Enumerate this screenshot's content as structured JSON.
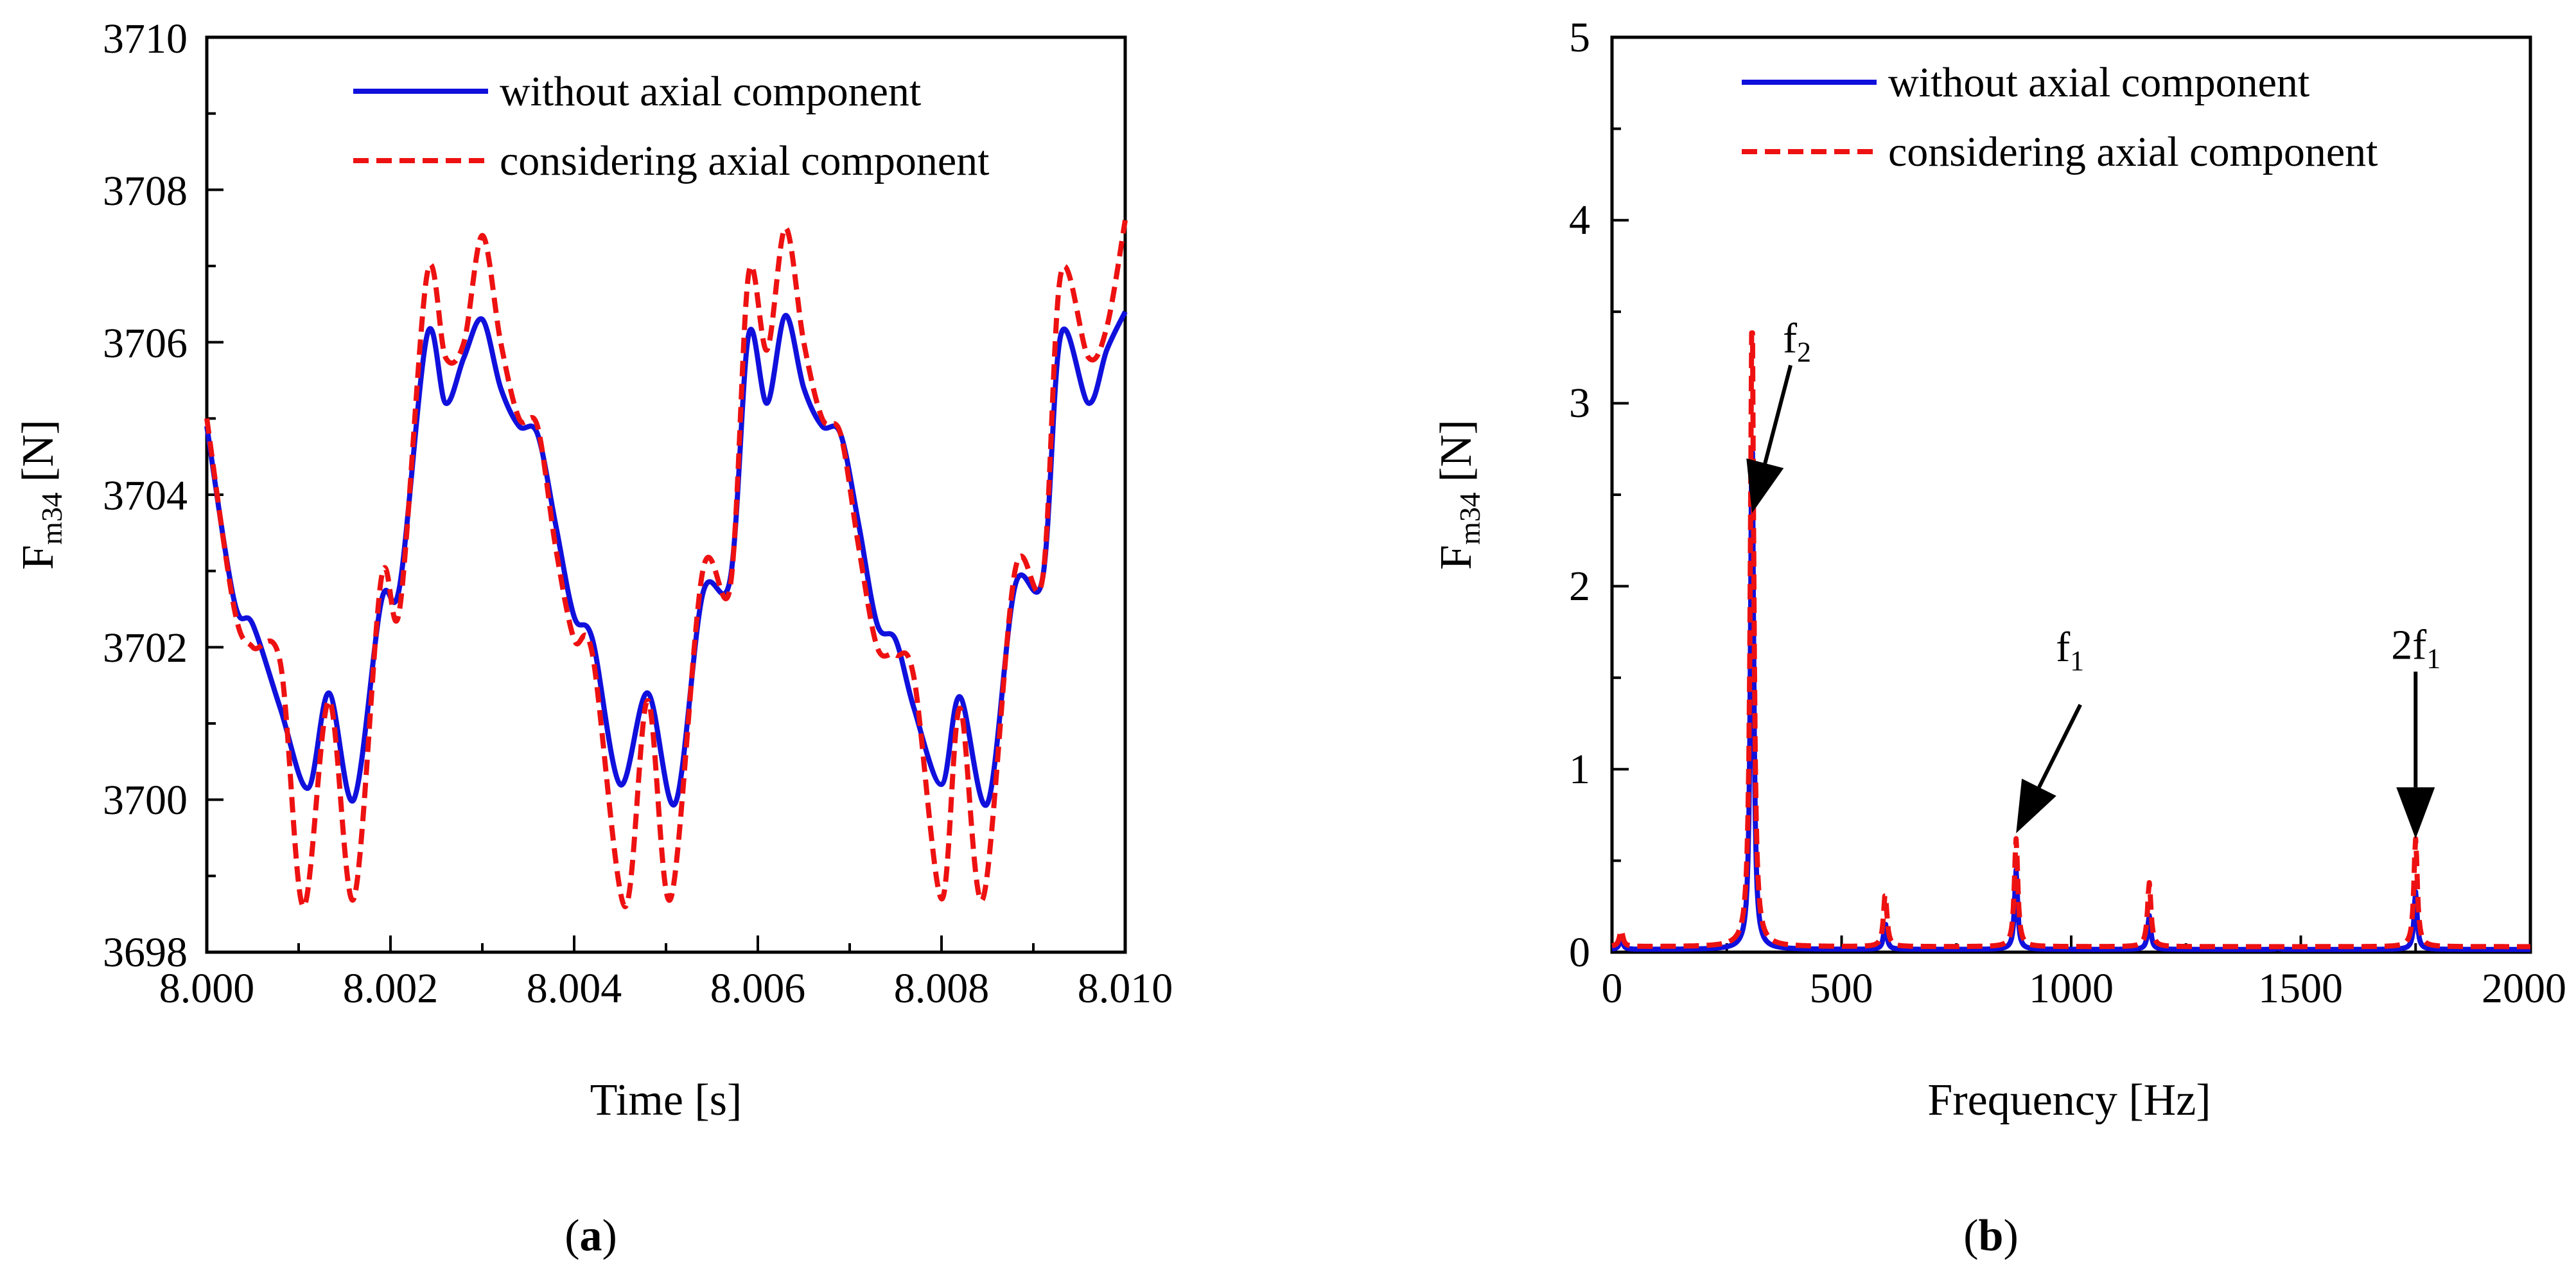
{
  "chart_data": [
    {
      "id": "a",
      "type": "line",
      "panel_label": "(a)",
      "panel_label_letter": "a",
      "xlabel": "Time [s]",
      "ylabel_main": "F",
      "ylabel_sub": "m34",
      "ylabel_unit": "[N]",
      "xlim": [
        8.0,
        8.01
      ],
      "ylim": [
        3698,
        3710
      ],
      "xticks": [
        "8.000",
        "8.002",
        "8.004",
        "8.006",
        "8.008",
        "8.010"
      ],
      "yticks": [
        "3698",
        "3700",
        "3702",
        "3704",
        "3706",
        "3708",
        "3710"
      ],
      "legend_position": "top-right",
      "legend": [
        "without axial component",
        "considering axial component"
      ],
      "series": [
        {
          "name": "without axial component",
          "color": "#1010dd",
          "style": "solid",
          "x": [
            8.0,
            8.0003,
            8.0005,
            8.0008,
            8.0011,
            8.00133,
            8.0016,
            8.0019,
            8.0021,
            8.0024,
            8.0026,
            8.0028,
            8.003,
            8.0032,
            8.0034,
            8.0036,
            8.0038,
            8.004,
            8.0042,
            8.0045,
            8.0048,
            8.0051,
            8.0054,
            8.0057,
            8.0059,
            8.0061,
            8.0063,
            8.0065,
            8.0067,
            8.0069,
            8.0071,
            8.0073,
            8.0075,
            8.0077,
            8.008,
            8.0082,
            8.0085,
            8.0088,
            8.0091,
            8.0093,
            8.0096,
            8.0098,
            8.01
          ],
          "y": [
            3704.9,
            3702.6,
            3702.3,
            3701.2,
            3700.15,
            3701.4,
            3700.0,
            3702.6,
            3702.8,
            3706.1,
            3705.2,
            3705.8,
            3706.3,
            3705.4,
            3704.9,
            3704.8,
            3703.6,
            3702.4,
            3702.1,
            3700.2,
            3701.4,
            3699.95,
            3702.7,
            3702.9,
            3706.1,
            3705.2,
            3706.35,
            3705.4,
            3704.9,
            3704.8,
            3703.6,
            3702.3,
            3702.1,
            3701.2,
            3700.2,
            3701.35,
            3699.95,
            3702.8,
            3702.9,
            3706.1,
            3705.2,
            3705.9,
            3706.4
          ]
        },
        {
          "name": "considering axial component",
          "color": "#ee1111",
          "style": "dashed",
          "x": [
            8.0,
            8.0003,
            8.0005,
            8.0008,
            8.00105,
            8.00133,
            8.0016,
            8.0019,
            8.0021,
            8.0024,
            8.0026,
            8.0028,
            8.003,
            8.0032,
            8.0034,
            8.0036,
            8.0038,
            8.004,
            8.0042,
            8.00455,
            8.0048,
            8.00505,
            8.0054,
            8.0057,
            8.0059,
            8.0061,
            8.0063,
            8.0065,
            8.0067,
            8.0069,
            8.0071,
            8.0073,
            8.0075,
            8.0077,
            8.008,
            8.0082,
            8.00845,
            8.0088,
            8.0091,
            8.0093,
            8.0096,
            8.0098,
            8.01
          ],
          "y": [
            3705.0,
            3702.5,
            3702.0,
            3701.8,
            3698.6,
            3701.3,
            3698.7,
            3702.9,
            3702.5,
            3706.9,
            3705.8,
            3706.0,
            3707.4,
            3706.0,
            3705.0,
            3704.9,
            3703.3,
            3702.1,
            3701.9,
            3698.6,
            3701.3,
            3698.7,
            3703.0,
            3702.8,
            3706.9,
            3705.9,
            3707.5,
            3706.0,
            3705.0,
            3704.8,
            3703.3,
            3702.0,
            3701.9,
            3701.6,
            3698.7,
            3701.2,
            3698.7,
            3703.0,
            3702.9,
            3706.9,
            3705.8,
            3706.2,
            3707.6
          ]
        }
      ]
    },
    {
      "id": "b",
      "type": "line",
      "panel_label": "(b)",
      "panel_label_letter": "b",
      "xlabel": "Frequency [Hz]",
      "ylabel_main": "F",
      "ylabel_sub": "m34",
      "ylabel_unit": "[N]",
      "xlim": [
        0,
        2000
      ],
      "ylim": [
        0,
        5
      ],
      "xticks": [
        "0",
        "500",
        "1000",
        "1500",
        "2000"
      ],
      "yticks": [
        "0",
        "1",
        "2",
        "3",
        "4",
        "5"
      ],
      "legend_position": "top-right",
      "legend": [
        "without axial component",
        "considering axial component"
      ],
      "annotations": [
        {
          "text_main": "f",
          "text_sub": "2",
          "x": 305,
          "y": 2.4
        },
        {
          "text_main": "f",
          "text_sub": "1",
          "x": 880,
          "y": 0.65
        },
        {
          "text_main": "2f",
          "text_sub": "1",
          "x": 1750,
          "y": 0.62
        }
      ],
      "peaks": [
        {
          "f": 20,
          "without": 0.08,
          "considering": 0.12
        },
        {
          "f": 305,
          "without": 2.9,
          "considering": 3.55
        },
        {
          "f": 595,
          "without": 0.16,
          "considering": 0.32
        },
        {
          "f": 880,
          "without": 0.45,
          "considering": 0.62
        },
        {
          "f": 1170,
          "without": 0.2,
          "considering": 0.38
        },
        {
          "f": 1450,
          "without": 0.02,
          "considering": 0.03
        },
        {
          "f": 1750,
          "without": 0.33,
          "considering": 0.62
        }
      ],
      "series": [
        {
          "name": "without axial component",
          "color": "#1010dd",
          "style": "solid"
        },
        {
          "name": "considering axial component",
          "color": "#ee1111",
          "style": "dashed"
        }
      ]
    }
  ]
}
